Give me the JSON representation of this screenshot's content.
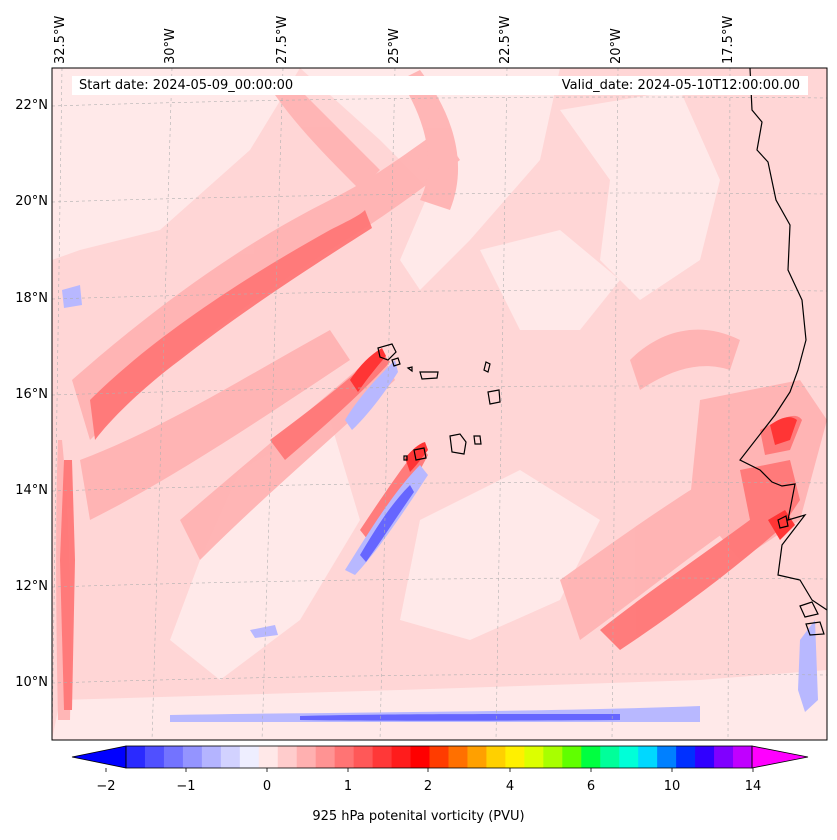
{
  "map": {
    "region": "Cape Verde / West African coast",
    "lon_labels": [
      "32.5°W",
      "30°W",
      "27.5°W",
      "25°W",
      "22.5°W",
      "20°W",
      "17.5°W"
    ],
    "lat_labels": [
      "22°N",
      "20°N",
      "18°N",
      "16°N",
      "14°N",
      "12°N",
      "10°N"
    ],
    "start_date": "Start date: 2024-05-09_00:00:00",
    "valid_date": "Valid_date: 2024-05-10T12:00:00.00"
  },
  "colorbar": {
    "label": "925 hPa potenital vorticity (PVU)",
    "ticks": [
      "−2",
      "−1",
      "0",
      "1",
      "2",
      "4",
      "6",
      "10",
      "14"
    ],
    "colors": [
      "#0000ff",
      "#2a2aff",
      "#5050ff",
      "#7373ff",
      "#9494ff",
      "#b4b4ff",
      "#d2d2ff",
      "#eeeeff",
      "#ffe8e8",
      "#ffcccc",
      "#ffb0b0",
      "#ff9393",
      "#ff7474",
      "#ff5858",
      "#ff3838",
      "#ff1c1c",
      "#ff0000",
      "#ff3c00",
      "#ff7000",
      "#ffa000",
      "#ffd000",
      "#fff000",
      "#dcff00",
      "#a8ff00",
      "#60ff00",
      "#00ff40",
      "#00ff9a",
      "#00ffd8",
      "#00d8ff",
      "#0080ff",
      "#0030ff",
      "#3000ff",
      "#8000ff",
      "#c000ff",
      "#ff00ff"
    ]
  }
}
